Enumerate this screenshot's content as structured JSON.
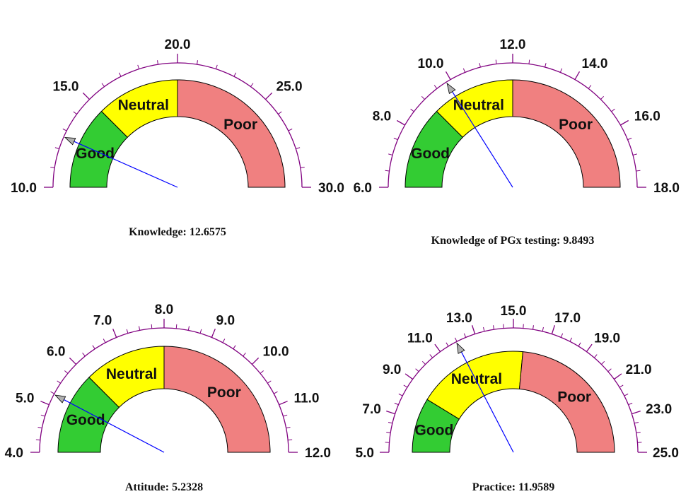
{
  "chart_data": [
    {
      "type": "gauge",
      "caption": "Knowledge: 12.6575",
      "range": [
        10,
        30
      ],
      "value": 12.6575,
      "major_ticks": [
        10,
        15,
        20,
        25,
        30
      ],
      "tick_labels": [
        "10.0",
        "15.0",
        "20.0",
        "25.0",
        "30.0"
      ],
      "minor_tick_step": 1,
      "zones": [
        {
          "label": "Good",
          "from": 10,
          "to": 15,
          "color": "#33cc33"
        },
        {
          "label": "Neutral",
          "from": 15,
          "to": 20,
          "color": "#ffff00"
        },
        {
          "label": "Poor",
          "from": 20,
          "to": 30,
          "color": "#f08080"
        }
      ]
    },
    {
      "type": "gauge",
      "caption": "Knowledge of PGx testing: 9.8493",
      "range": [
        6,
        18
      ],
      "value": 9.8493,
      "major_ticks": [
        6,
        8,
        10,
        12,
        14,
        16,
        18
      ],
      "tick_labels": [
        "6.0",
        "8.0",
        "10.0",
        "12.0",
        "14.0",
        "16.0",
        "18.0"
      ],
      "minor_tick_step": 0.5,
      "zones": [
        {
          "label": "Good",
          "from": 6,
          "to": 9,
          "color": "#33cc33"
        },
        {
          "label": "Neutral",
          "from": 9,
          "to": 12,
          "color": "#ffff00"
        },
        {
          "label": "Poor",
          "from": 12,
          "to": 18,
          "color": "#f08080"
        }
      ]
    },
    {
      "type": "gauge",
      "caption": "Attitude: 5.2328",
      "range": [
        4,
        12
      ],
      "value": 5.2328,
      "major_ticks": [
        4,
        5,
        6,
        7,
        8,
        9,
        10,
        11,
        12
      ],
      "tick_labels": [
        "4.0",
        "5.0",
        "6.0",
        "7.0",
        "8.0",
        "9.0",
        "10.0",
        "11.0",
        "12.0"
      ],
      "minor_tick_step": 0.25,
      "zones": [
        {
          "label": "Good",
          "from": 4,
          "to": 6,
          "color": "#33cc33"
        },
        {
          "label": "Neutral",
          "from": 6,
          "to": 8,
          "color": "#ffff00"
        },
        {
          "label": "Poor",
          "from": 8,
          "to": 12,
          "color": "#f08080"
        }
      ]
    },
    {
      "type": "gauge",
      "caption": "Practice: 11.9589",
      "range": [
        5,
        25
      ],
      "value": 11.9589,
      "major_ticks": [
        5,
        7,
        9,
        11,
        13,
        15,
        17,
        19,
        21,
        23,
        25
      ],
      "tick_labels": [
        "5.0",
        "7.0",
        "9.0",
        "11.0",
        "13.0",
        "15.0",
        "17.0",
        "19.0",
        "21.0",
        "23.0",
        "25.0"
      ],
      "minor_tick_step": 0.5,
      "zones": [
        {
          "label": "Good",
          "from": 5,
          "to": 8.5,
          "color": "#33cc33"
        },
        {
          "label": "Neutral",
          "from": 8.5,
          "to": 15.6,
          "color": "#ffff00"
        },
        {
          "label": "Poor",
          "from": 15.6,
          "to": 25,
          "color": "#f08080"
        }
      ]
    }
  ],
  "colors": {
    "axis": "#800080",
    "needle": "#0000ff",
    "needle_tip": "#b0b0b0",
    "outline": "#000000"
  }
}
